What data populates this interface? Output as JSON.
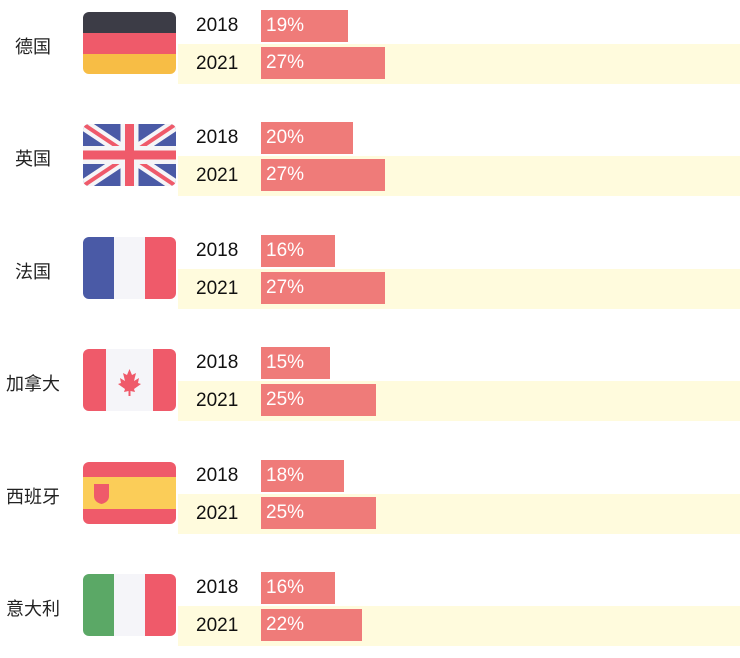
{
  "chart_data": {
    "type": "bar",
    "orientation": "horizontal",
    "categories": [
      "德国",
      "英国",
      "法国",
      "加拿大",
      "西班牙",
      "意大利"
    ],
    "series": [
      {
        "name": "2018",
        "values": [
          19,
          20,
          16,
          15,
          18,
          16
        ],
        "labels": [
          "19%",
          "20%",
          "16%",
          "15%",
          "18%",
          "16%"
        ]
      },
      {
        "name": "2021",
        "values": [
          27,
          27,
          27,
          25,
          25,
          22
        ],
        "labels": [
          "27%",
          "27%",
          "27%",
          "25%",
          "25%",
          "22%"
        ]
      }
    ],
    "value_unit": "%",
    "bar_color": "#ef7b79",
    "highlight_row_color": "#fffbdd",
    "flags": [
      "germany-flag",
      "uk-flag",
      "france-flag",
      "canada-flag",
      "spain-flag",
      "italy-flag"
    ]
  }
}
